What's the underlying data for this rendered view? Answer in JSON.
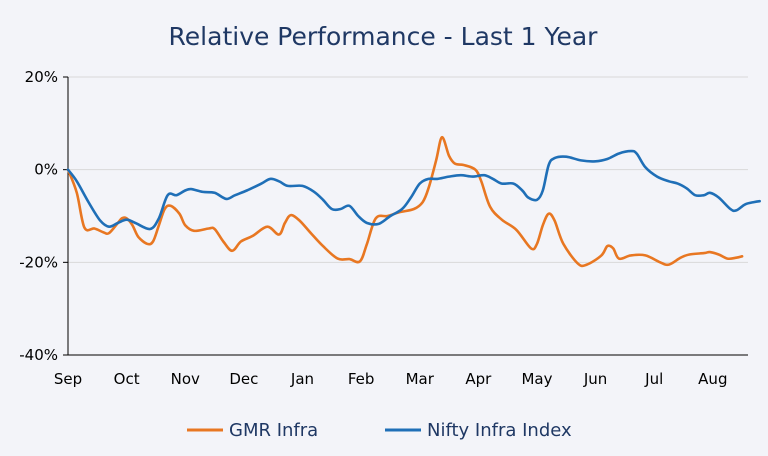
{
  "chart_data": {
    "type": "line",
    "title": "Relative Performance - Last 1 Year",
    "xlabel": "",
    "ylabel": "",
    "x_range": [
      0,
      11.6
    ],
    "x_ticks": [
      {
        "label": "Sep",
        "x": 0
      },
      {
        "label": "Oct",
        "x": 1
      },
      {
        "label": "Nov",
        "x": 2
      },
      {
        "label": "Dec",
        "x": 3
      },
      {
        "label": "Jan",
        "x": 4
      },
      {
        "label": "Feb",
        "x": 5
      },
      {
        "label": "Mar",
        "x": 6
      },
      {
        "label": "Apr",
        "x": 7
      },
      {
        "label": "May",
        "x": 8
      },
      {
        "label": "Jun",
        "x": 9
      },
      {
        "label": "Jul",
        "x": 10
      },
      {
        "label": "Aug",
        "x": 11
      }
    ],
    "y_ticks": [
      {
        "label": "20%",
        "value": 20
      },
      {
        "label": "0%",
        "value": 0
      },
      {
        "label": "-20%",
        "value": -20
      },
      {
        "label": "-40%",
        "value": -40
      }
    ],
    "ylim": [
      -40,
      20
    ],
    "grid": true,
    "legend_position": "bottom",
    "series": [
      {
        "name": "GMR Infra",
        "color": "#e87722",
        "points": [
          [
            0.0,
            0
          ],
          [
            0.15,
            -5
          ],
          [
            0.28,
            -12.5
          ],
          [
            0.45,
            -12.7
          ],
          [
            0.6,
            -13.5
          ],
          [
            0.7,
            -13.7
          ],
          [
            0.85,
            -11.5
          ],
          [
            0.92,
            -10.5
          ],
          [
            1.0,
            -10.5
          ],
          [
            1.1,
            -12
          ],
          [
            1.2,
            -14.5
          ],
          [
            1.35,
            -16
          ],
          [
            1.45,
            -15.5
          ],
          [
            1.55,
            -12
          ],
          [
            1.65,
            -8.5
          ],
          [
            1.75,
            -7.8
          ],
          [
            1.9,
            -9.5
          ],
          [
            2.0,
            -12
          ],
          [
            2.15,
            -13.2
          ],
          [
            2.4,
            -12.7
          ],
          [
            2.5,
            -12.8
          ],
          [
            2.65,
            -15.5
          ],
          [
            2.8,
            -17.5
          ],
          [
            2.95,
            -15.5
          ],
          [
            3.15,
            -14.3
          ],
          [
            3.4,
            -12.3
          ],
          [
            3.6,
            -14
          ],
          [
            3.7,
            -11.5
          ],
          [
            3.8,
            -9.8
          ],
          [
            3.95,
            -11
          ],
          [
            4.15,
            -13.8
          ],
          [
            4.35,
            -16.5
          ],
          [
            4.6,
            -19.2
          ],
          [
            4.8,
            -19.3
          ],
          [
            4.98,
            -19.8
          ],
          [
            5.1,
            -16
          ],
          [
            5.25,
            -10.5
          ],
          [
            5.45,
            -10
          ],
          [
            5.65,
            -9.2
          ],
          [
            5.9,
            -8.5
          ],
          [
            6.05,
            -7
          ],
          [
            6.15,
            -4
          ],
          [
            6.28,
            2
          ],
          [
            6.38,
            7
          ],
          [
            6.5,
            3
          ],
          [
            6.6,
            1.3
          ],
          [
            6.75,
            1
          ],
          [
            6.95,
            0
          ],
          [
            7.05,
            -2.5
          ],
          [
            7.2,
            -8
          ],
          [
            7.4,
            -10.8
          ],
          [
            7.65,
            -13
          ],
          [
            7.9,
            -17
          ],
          [
            8.0,
            -16
          ],
          [
            8.1,
            -12
          ],
          [
            8.2,
            -9.5
          ],
          [
            8.3,
            -11
          ],
          [
            8.45,
            -16
          ],
          [
            8.7,
            -20.3
          ],
          [
            8.85,
            -20.5
          ],
          [
            9.1,
            -18.5
          ],
          [
            9.2,
            -16.5
          ],
          [
            9.3,
            -17
          ],
          [
            9.4,
            -19.2
          ],
          [
            9.6,
            -18.5
          ],
          [
            9.85,
            -18.5
          ],
          [
            10.1,
            -20
          ],
          [
            10.25,
            -20.5
          ],
          [
            10.45,
            -19
          ],
          [
            10.6,
            -18.3
          ],
          [
            10.85,
            -18
          ],
          [
            10.95,
            -17.8
          ],
          [
            11.1,
            -18.3
          ],
          [
            11.25,
            -19.2
          ],
          [
            11.4,
            -19
          ],
          [
            11.5,
            -18.7
          ]
        ]
      },
      {
        "name": "Nifty Infra Index",
        "color": "#1f6fb7",
        "points": [
          [
            0.0,
            0
          ],
          [
            0.15,
            -2.5
          ],
          [
            0.35,
            -7
          ],
          [
            0.55,
            -11
          ],
          [
            0.7,
            -12.3
          ],
          [
            0.85,
            -11.5
          ],
          [
            1.0,
            -10.8
          ],
          [
            1.15,
            -11.5
          ],
          [
            1.4,
            -12.8
          ],
          [
            1.55,
            -10.5
          ],
          [
            1.7,
            -5.5
          ],
          [
            1.85,
            -5.5
          ],
          [
            2.0,
            -4.5
          ],
          [
            2.1,
            -4.2
          ],
          [
            2.3,
            -4.8
          ],
          [
            2.5,
            -5
          ],
          [
            2.7,
            -6.3
          ],
          [
            2.85,
            -5.5
          ],
          [
            3.05,
            -4.5
          ],
          [
            3.3,
            -3
          ],
          [
            3.45,
            -2
          ],
          [
            3.6,
            -2.5
          ],
          [
            3.75,
            -3.5
          ],
          [
            4.0,
            -3.5
          ],
          [
            4.2,
            -4.8
          ],
          [
            4.35,
            -6.5
          ],
          [
            4.5,
            -8.5
          ],
          [
            4.65,
            -8.5
          ],
          [
            4.8,
            -7.8
          ],
          [
            4.95,
            -10
          ],
          [
            5.1,
            -11.5
          ],
          [
            5.3,
            -11.7
          ],
          [
            5.5,
            -10
          ],
          [
            5.7,
            -8.5
          ],
          [
            5.85,
            -6
          ],
          [
            6.0,
            -3
          ],
          [
            6.15,
            -2
          ],
          [
            6.3,
            -2
          ],
          [
            6.5,
            -1.5
          ],
          [
            6.7,
            -1.2
          ],
          [
            6.9,
            -1.5
          ],
          [
            7.1,
            -1.2
          ],
          [
            7.25,
            -2
          ],
          [
            7.4,
            -3
          ],
          [
            7.6,
            -3
          ],
          [
            7.75,
            -4.5
          ],
          [
            7.85,
            -6
          ],
          [
            8.0,
            -6.5
          ],
          [
            8.1,
            -4.5
          ],
          [
            8.2,
            1
          ],
          [
            8.3,
            2.5
          ],
          [
            8.5,
            2.8
          ],
          [
            8.75,
            2
          ],
          [
            9.0,
            1.8
          ],
          [
            9.2,
            2.3
          ],
          [
            9.4,
            3.5
          ],
          [
            9.6,
            4
          ],
          [
            9.7,
            3.5
          ],
          [
            9.85,
            0.5
          ],
          [
            10.05,
            -1.5
          ],
          [
            10.25,
            -2.5
          ],
          [
            10.4,
            -3
          ],
          [
            10.55,
            -4
          ],
          [
            10.7,
            -5.5
          ],
          [
            10.85,
            -5.5
          ],
          [
            10.95,
            -5
          ],
          [
            11.1,
            -6
          ],
          [
            11.3,
            -8.5
          ],
          [
            11.4,
            -8.8
          ],
          [
            11.55,
            -7.5
          ],
          [
            11.7,
            -7
          ],
          [
            11.8,
            -6.8
          ]
        ]
      }
    ]
  }
}
